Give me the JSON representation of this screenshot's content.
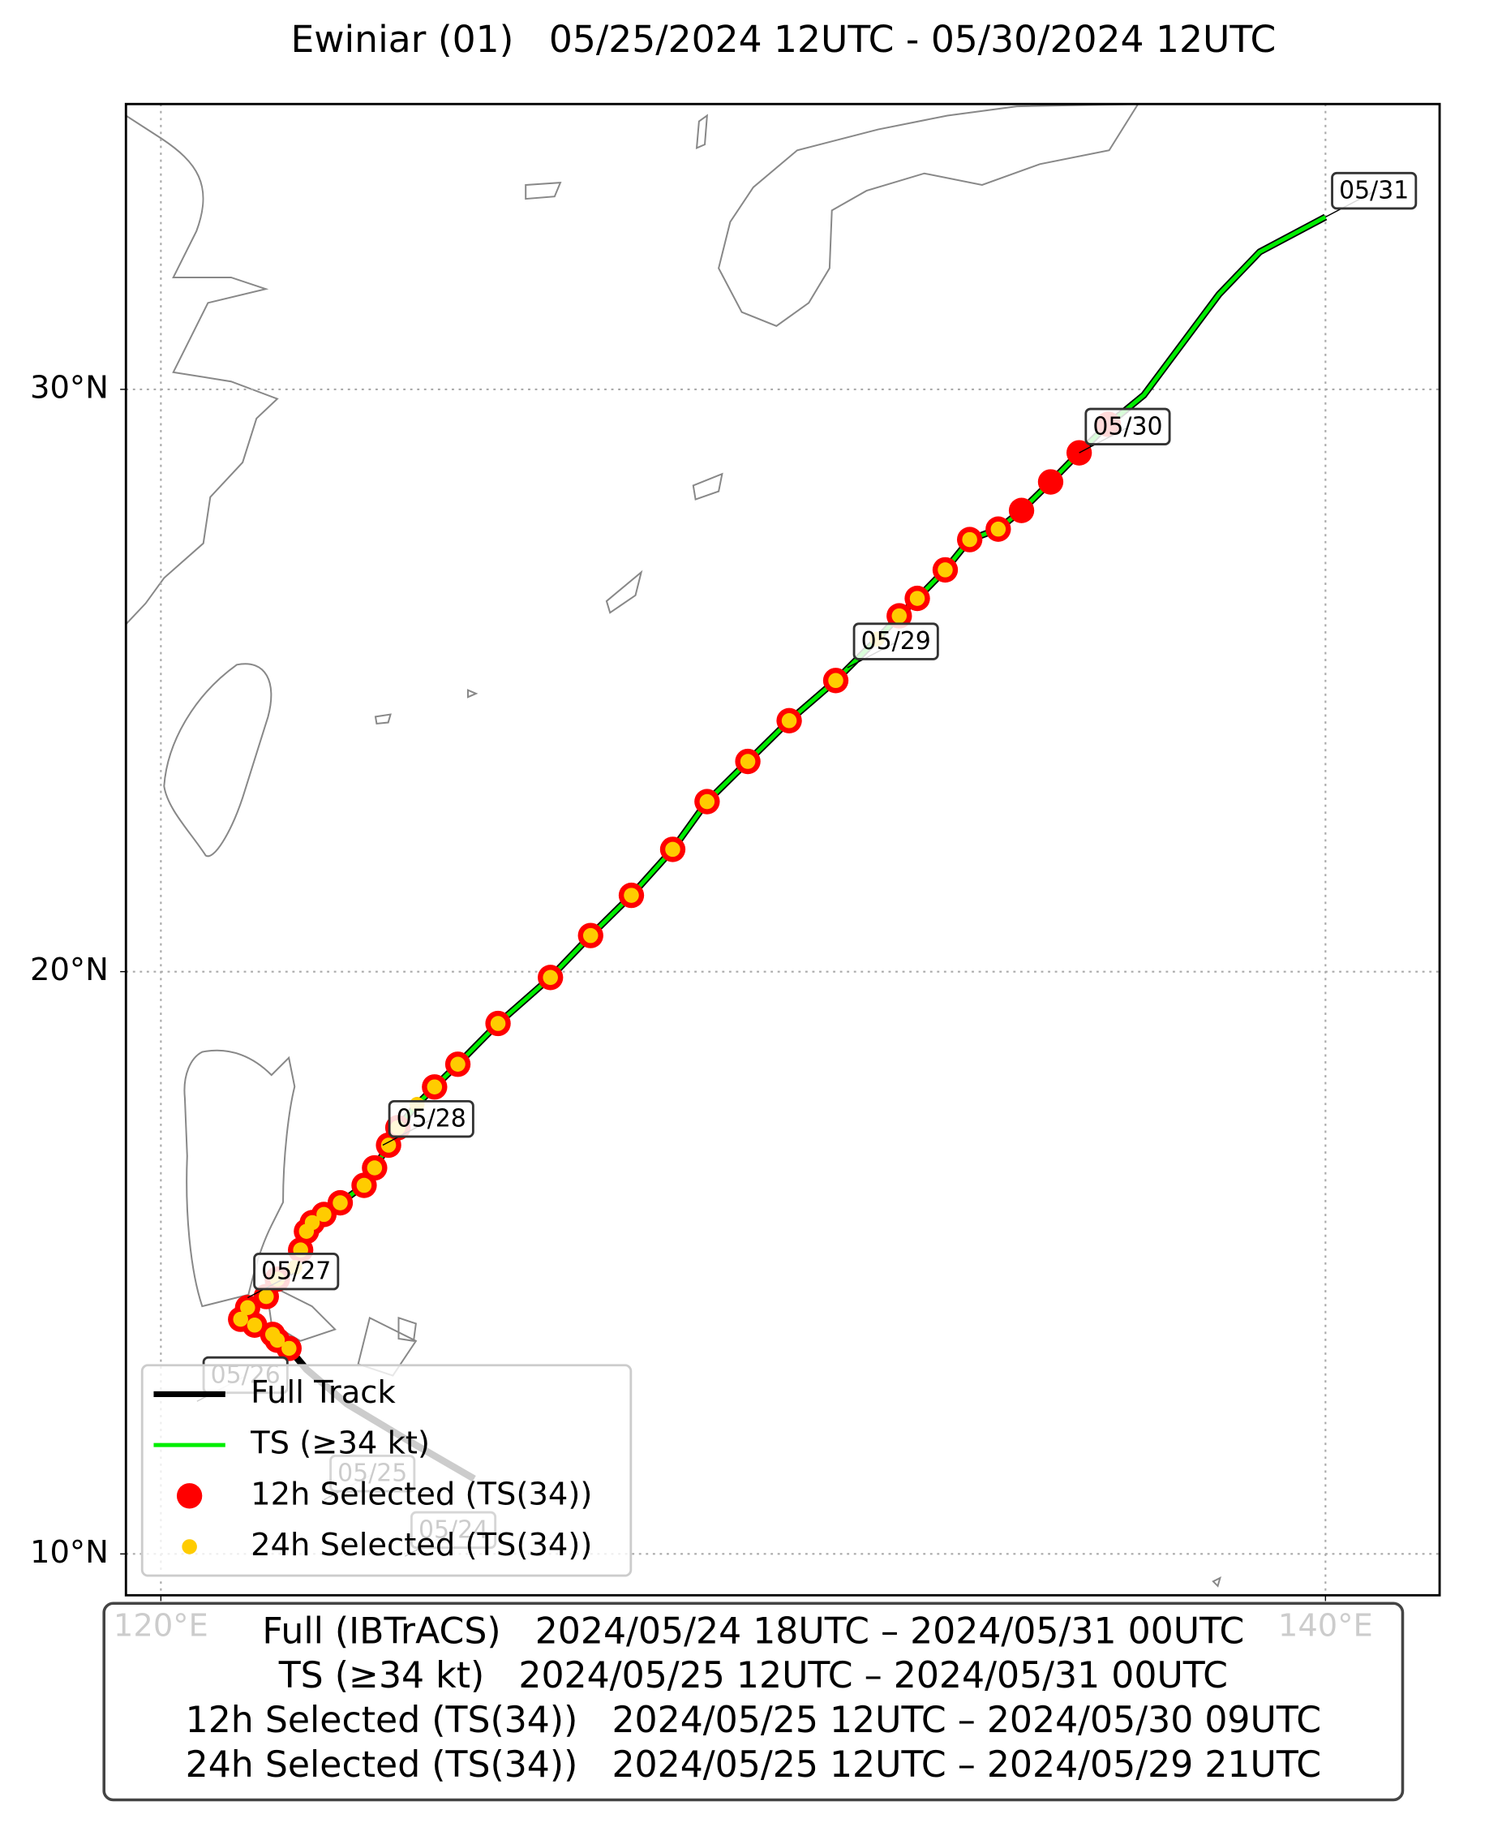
{
  "chart_data": {
    "type": "track",
    "title": "Ewiniar (01)   05/25/2024 12UTC - 05/30/2024 12UTC",
    "xlim": [
      119.4,
      141.96
    ],
    "ylim": [
      9.29,
      34.9
    ],
    "xticks": [
      {
        "value": 120,
        "label": "120°E"
      },
      {
        "value": 140,
        "label": "140°E"
      }
    ],
    "yticks": [
      {
        "value": 10,
        "label": "10°N"
      },
      {
        "value": 20,
        "label": "20°N"
      },
      {
        "value": 30,
        "label": "30°N"
      }
    ],
    "grid": true,
    "legend": "lower left",
    "series": [
      {
        "name": "Full Track",
        "color": "#000000",
        "style": "line",
        "x": [
          125.38,
          124.19,
          123.19,
          122.5,
          122.2,
          122.0,
          121.92,
          121.61,
          121.37,
          121.49,
          121.81,
          122.0,
          122.3,
          122.4,
          122.5,
          122.6,
          122.8,
          123.08,
          123.49,
          123.67,
          123.91,
          124.07,
          124.4,
          124.7,
          125.1,
          125.79,
          126.69,
          127.38,
          128.08,
          128.79,
          129.38,
          130.08,
          130.79,
          131.59,
          132.3,
          132.68,
          132.99,
          133.47,
          133.89,
          134.38,
          134.78,
          135.28,
          135.77,
          136.27,
          136.88,
          138.17,
          138.87,
          140.0
        ],
        "y": [
          11.29,
          11.98,
          12.58,
          13.17,
          13.53,
          13.67,
          13.77,
          13.93,
          14.03,
          14.23,
          14.42,
          14.72,
          14.92,
          15.22,
          15.54,
          15.69,
          15.83,
          16.03,
          16.33,
          16.63,
          17.02,
          17.32,
          17.72,
          18.02,
          18.41,
          19.11,
          19.9,
          20.62,
          21.31,
          22.1,
          22.92,
          23.61,
          24.31,
          25.0,
          25.71,
          26.11,
          26.41,
          26.9,
          27.42,
          27.6,
          27.92,
          28.41,
          28.91,
          29.4,
          29.9,
          31.63,
          32.36,
          32.96
        ]
      },
      {
        "name": "TS (≥34 kt)",
        "color": "#00ee00",
        "style": "line",
        "x": [
          122.2,
          122.0,
          121.92,
          121.61,
          121.37,
          121.49,
          121.81,
          122.0,
          122.3,
          122.4,
          122.5,
          122.6,
          122.8,
          123.08,
          123.49,
          123.67,
          123.91,
          124.07,
          124.4,
          124.7,
          125.1,
          125.79,
          126.69,
          127.38,
          128.08,
          128.79,
          129.38,
          130.08,
          130.79,
          131.59,
          132.3,
          132.68,
          132.99,
          133.47,
          133.89,
          134.38,
          134.78,
          135.28,
          135.77,
          136.27,
          136.88,
          138.17,
          138.87,
          140.0
        ],
        "y": [
          13.53,
          13.67,
          13.77,
          13.93,
          14.03,
          14.23,
          14.42,
          14.72,
          14.92,
          15.22,
          15.54,
          15.69,
          15.83,
          16.03,
          16.33,
          16.63,
          17.02,
          17.32,
          17.72,
          18.02,
          18.41,
          19.11,
          19.9,
          20.62,
          21.31,
          22.1,
          22.92,
          23.61,
          24.31,
          25.0,
          25.71,
          26.11,
          26.41,
          26.9,
          27.42,
          27.6,
          27.92,
          28.41,
          28.91,
          29.4,
          29.9,
          31.63,
          32.36,
          32.96
        ]
      },
      {
        "name": "12h Selected (TS(34))",
        "color": "#ff0000",
        "style": "marker",
        "x": [
          122.2,
          122.0,
          121.92,
          121.61,
          121.37,
          121.49,
          121.81,
          122.0,
          122.4,
          122.5,
          122.6,
          122.8,
          123.08,
          123.49,
          123.67,
          123.91,
          124.07,
          124.7,
          125.1,
          125.79,
          126.69,
          127.38,
          128.08,
          128.79,
          129.38,
          130.08,
          130.79,
          131.59,
          132.68,
          132.99,
          133.47,
          133.89,
          134.38,
          134.78,
          135.28,
          135.77,
          136.27
        ],
        "y": [
          13.53,
          13.67,
          13.77,
          13.93,
          14.03,
          14.23,
          14.42,
          14.72,
          15.22,
          15.54,
          15.69,
          15.83,
          16.03,
          16.33,
          16.63,
          17.02,
          17.32,
          18.02,
          18.41,
          19.11,
          19.9,
          20.62,
          21.31,
          22.1,
          22.92,
          23.61,
          24.31,
          25.0,
          26.11,
          26.41,
          26.9,
          27.42,
          27.6,
          27.92,
          28.41,
          28.91,
          29.4
        ]
      },
      {
        "name": "24h Selected (TS(34))",
        "color": "#ffcc00",
        "style": "marker",
        "x": [
          122.2,
          122.0,
          121.92,
          121.61,
          121.37,
          121.49,
          121.81,
          122.0,
          122.3,
          122.4,
          122.5,
          122.6,
          122.8,
          123.08,
          123.49,
          123.67,
          123.91,
          124.07,
          124.4,
          124.7,
          125.1,
          125.79,
          126.69,
          127.38,
          128.08,
          128.79,
          129.38,
          130.08,
          130.79,
          131.59,
          132.3,
          132.68,
          132.99,
          133.47,
          133.89,
          134.38
        ],
        "y": [
          13.53,
          13.67,
          13.77,
          13.93,
          14.03,
          14.23,
          14.42,
          14.72,
          14.92,
          15.22,
          15.54,
          15.69,
          15.83,
          16.03,
          16.33,
          16.63,
          17.02,
          17.32,
          17.72,
          18.02,
          18.41,
          19.11,
          19.9,
          20.62,
          21.31,
          22.1,
          22.92,
          23.61,
          24.31,
          25.0,
          25.71,
          26.11,
          26.41,
          26.9,
          27.42,
          27.6
        ]
      }
    ],
    "annotations": [
      {
        "text": "05/31",
        "x": 140.0,
        "y": 32.96
      },
      {
        "text": "05/30",
        "x": 135.77,
        "y": 28.91
      },
      {
        "text": "05/29",
        "x": 131.79,
        "y": 25.22
      },
      {
        "text": "05/28",
        "x": 123.81,
        "y": 17.02
      },
      {
        "text": "05/27",
        "x": 121.49,
        "y": 14.4
      },
      {
        "text": "05/26",
        "x": 120.62,
        "y": 12.62
      },
      {
        "text": "05/25",
        "x": 122.8,
        "y": 10.93
      },
      {
        "text": "05/24",
        "x": 124.19,
        "y": 9.96
      }
    ],
    "footer": [
      "Full (IBTrACS)   2024/05/24 18UTC – 2024/05/31 00UTC",
      "TS (≥34 kt)   2024/05/25 12UTC – 2024/05/31 00UTC",
      "12h Selected (TS(34))   2024/05/25 12UTC – 2024/05/30 09UTC",
      "24h Selected (TS(34))   2024/05/25 12UTC – 2024/05/29 21UTC"
    ]
  }
}
